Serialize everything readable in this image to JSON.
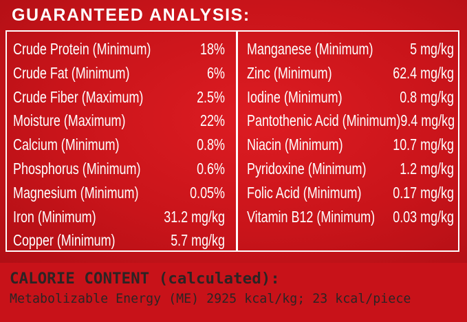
{
  "title": "GUARANTEED ANALYSIS:",
  "left_items": [
    {
      "label": "Crude Protein (Minimum)",
      "value": "18%"
    },
    {
      "label": "Crude Fat (Minimum)",
      "value": "6%"
    },
    {
      "label": "Crude Fiber (Maximum)",
      "value": "2.5%"
    },
    {
      "label": "Moisture (Maximum)",
      "value": "22%"
    },
    {
      "label": "Calcium (Minimum)",
      "value": "0.8%"
    },
    {
      "label": "Phosphorus (Minimum)",
      "value": "0.6%"
    },
    {
      "label": "Magnesium (Minimum)",
      "value": "0.05%"
    },
    {
      "label": "Iron (Minimum)",
      "value": "31.2 mg/kg"
    },
    {
      "label": "Copper (Minimum)",
      "value": "5.7 mg/kg"
    }
  ],
  "right_items": [
    {
      "label": "Manganese (Minimum)",
      "value": "5 mg/kg"
    },
    {
      "label": "Zinc (Minimum)",
      "value": "62.4 mg/kg"
    },
    {
      "label": "Iodine (Minimum)",
      "value": "0.8 mg/kg"
    },
    {
      "label": "Pantothenic Acid (Minimum)",
      "value": "9.4 mg/kg"
    },
    {
      "label": "Niacin (Minimum)",
      "value": "10.7 mg/kg"
    },
    {
      "label": "Pyridoxine (Minimum)",
      "value": "1.2 mg/kg"
    },
    {
      "label": "Folic Acid (Minimum)",
      "value": "0.17 mg/kg"
    },
    {
      "label": "Vitamin B12 (Minimum)",
      "value": "0.03 mg/kg"
    }
  ],
  "calorie": {
    "title": "CALORIE CONTENT (calculated):",
    "text": "Metabolizable Energy (ME) 2925 kcal/kg; 23 kcal/piece"
  },
  "colors": {
    "panel_red": "#d41a20",
    "text_white": "#ffffff",
    "footer_text": "#2c2424"
  }
}
